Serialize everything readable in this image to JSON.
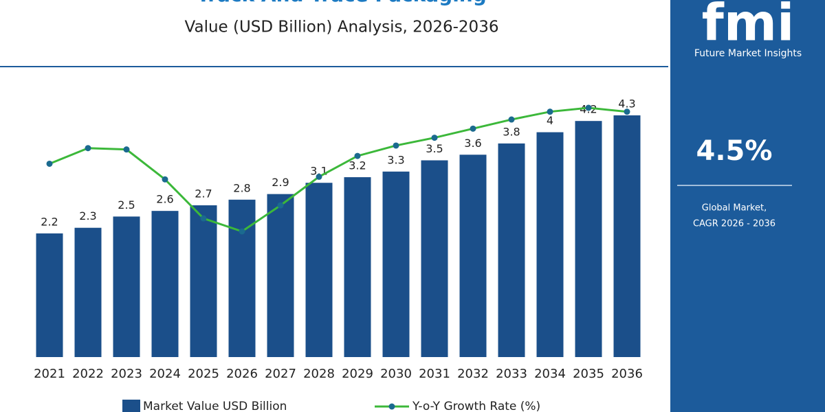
{
  "chart_data": {
    "type": "bar",
    "title": "Track And Trace Packaging",
    "subtitle": "Value (USD Billion) Analysis, 2026-2036",
    "categories": [
      "2021",
      "2022",
      "2023",
      "2024",
      "2025",
      "2026",
      "2027",
      "2028",
      "2029",
      "2030",
      "2031",
      "2032",
      "2033",
      "2034",
      "2035",
      "2036"
    ],
    "series": [
      {
        "name": "Market Value USD Billion",
        "type": "bar",
        "color": "#1b4f8a",
        "values": [
          2.2,
          2.3,
          2.5,
          2.6,
          2.7,
          2.8,
          2.9,
          3.1,
          3.2,
          3.3,
          3.5,
          3.6,
          3.8,
          4.0,
          4.2,
          4.3
        ]
      },
      {
        "name": "Y-o-Y Growth Rate (%)",
        "type": "line",
        "color": "#3cb83a",
        "marker_color": "#1b6a8f",
        "values": [
          4.0,
          4.6,
          4.55,
          3.4,
          1.9,
          1.4,
          2.4,
          3.5,
          4.3,
          4.7,
          5.0,
          5.35,
          5.7,
          6.0,
          6.15,
          6.0
        ]
      }
    ]
  },
  "brand": {
    "logo": "fmi",
    "name": "Future Market Insights"
  },
  "highlight": {
    "value": "4.5%",
    "caption": [
      "Global Market,",
      "CAGR 2026 - 2036"
    ]
  }
}
